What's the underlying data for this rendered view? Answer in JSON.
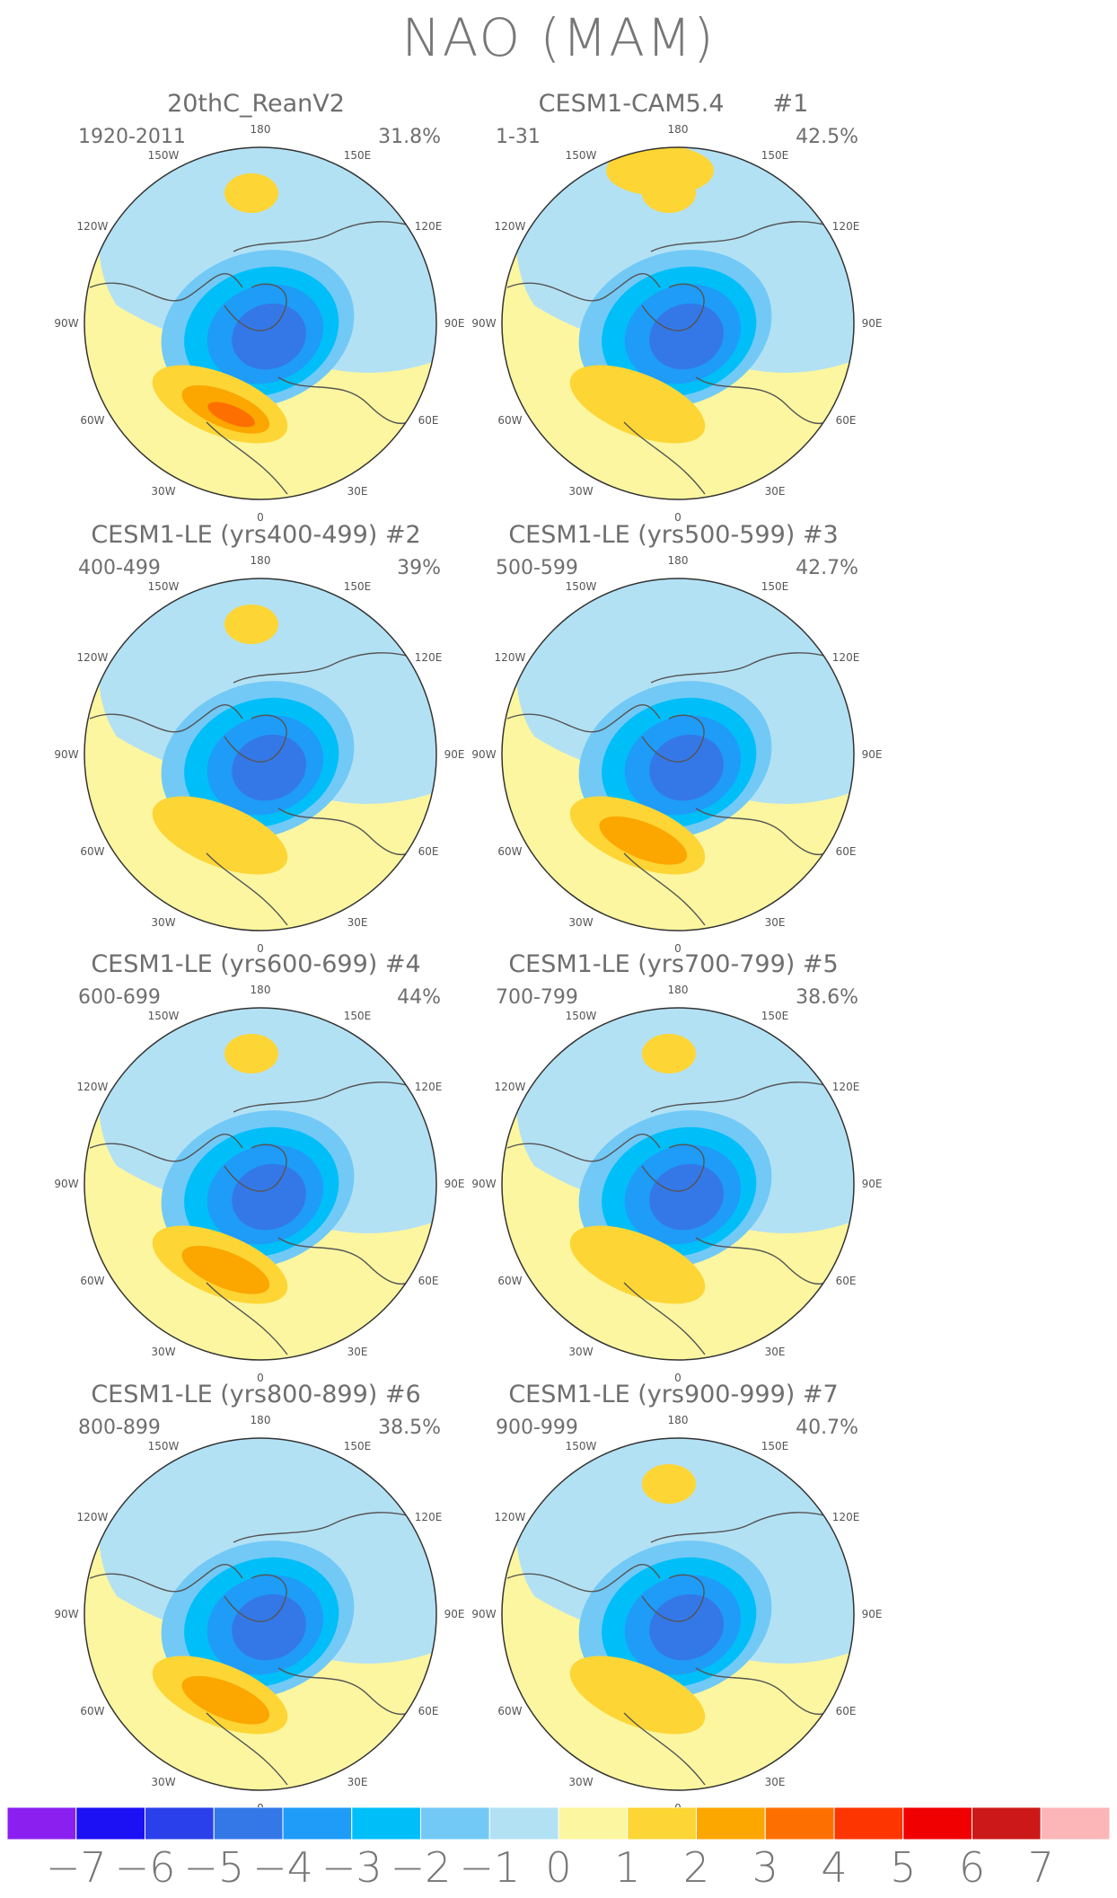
{
  "title": "NAO (MAM)",
  "lon_labels": [
    "180",
    "150E",
    "120E",
    "90E",
    "60E",
    "30E",
    "0",
    "30W",
    "60W",
    "90W",
    "120W",
    "150W"
  ],
  "panels": [
    {
      "title": "20thC_ReanV2",
      "number": "",
      "years": "1920-2011",
      "percent": "31.8%",
      "pattern": {
        "pole_min": -4,
        "atlantic_max": 3,
        "pacific_max": 1,
        "eurasia_max": 0
      }
    },
    {
      "title": "CESM1-CAM5.4",
      "number": "#1",
      "years": "1-31",
      "percent": "42.5%",
      "pattern": {
        "pole_min": -4,
        "atlantic_max": 1,
        "pacific_max": 1,
        "eurasia_max": 1
      }
    },
    {
      "title": "CESM1-LE (yrs400-499)",
      "number": "#2",
      "years": "400-499",
      "percent": "39%",
      "pattern": {
        "pole_min": -4,
        "atlantic_max": 1,
        "pacific_max": 1,
        "eurasia_max": 0
      }
    },
    {
      "title": "CESM1-LE (yrs500-599)",
      "number": "#3",
      "years": "500-599",
      "percent": "42.7%",
      "pattern": {
        "pole_min": -4,
        "atlantic_max": 2,
        "pacific_max": 0,
        "eurasia_max": 0
      }
    },
    {
      "title": "CESM1-LE (yrs600-699)",
      "number": "#4",
      "years": "600-699",
      "percent": "44%",
      "pattern": {
        "pole_min": -4,
        "atlantic_max": 2,
        "pacific_max": 1,
        "eurasia_max": 0
      }
    },
    {
      "title": "CESM1-LE (yrs700-799)",
      "number": "#5",
      "years": "700-799",
      "percent": "38.6%",
      "pattern": {
        "pole_min": -4,
        "atlantic_max": 1,
        "pacific_max": 1,
        "eurasia_max": 0
      }
    },
    {
      "title": "CESM1-LE (yrs800-899)",
      "number": "#6",
      "years": "800-899",
      "percent": "38.5%",
      "pattern": {
        "pole_min": -4,
        "atlantic_max": 2,
        "pacific_max": 0,
        "eurasia_max": 0
      }
    },
    {
      "title": "CESM1-LE (yrs900-999)",
      "number": "#7",
      "years": "900-999",
      "percent": "40.7%",
      "pattern": {
        "pole_min": -4,
        "atlantic_max": 1,
        "pacific_max": 1,
        "eurasia_max": 0
      }
    }
  ],
  "colorbar": {
    "labels": [
      "−7",
      "−6",
      "−5",
      "−4",
      "−3",
      "−2",
      "−1",
      "0",
      "1",
      "2",
      "3",
      "4",
      "5",
      "6",
      "7"
    ],
    "colors": [
      "#8a1ff0",
      "#1c10f5",
      "#2a40ea",
      "#3478e8",
      "#1e9cf8",
      "#00bff8",
      "#72c9f6",
      "#b3e1f4",
      "#fcf6a0",
      "#fdd535",
      "#fca600",
      "#fd7000",
      "#fd3500",
      "#f00000",
      "#cc1818",
      "#fcb6b8"
    ]
  }
}
